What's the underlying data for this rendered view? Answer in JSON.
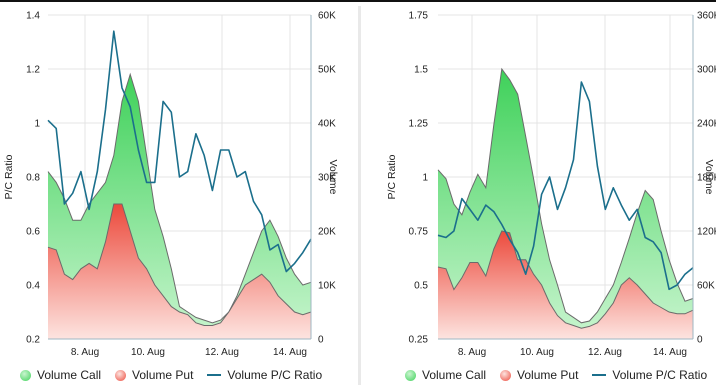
{
  "colors": {
    "call_top": "#3fd15a",
    "call_bottom": "#c9f5cf",
    "put_top": "#ec4a3c",
    "put_bottom": "#fde4e0",
    "ratio_line": "#1b6f8c",
    "grid": "#e4e4e4",
    "axis": "#9fb7c3"
  },
  "legend": {
    "call": "Volume Call",
    "put": "Volume Put",
    "ratio": "Volume P/C Ratio"
  },
  "chart_data": [
    {
      "type": "area",
      "ylabel": "P/C Ratio",
      "y2label": "Volume",
      "ylim": [
        0.2,
        1.4
      ],
      "y2lim": [
        0,
        60000
      ],
      "yticks": [
        "1.4",
        "1.2",
        "1",
        "0.8",
        "0.6",
        "0.4",
        "0.2"
      ],
      "y2ticks": [
        "60K",
        "50K",
        "40K",
        "30K",
        "20K",
        "10K",
        "0"
      ],
      "xticks": [
        "8. Aug",
        "10. Aug",
        "12. Aug",
        "14. Aug"
      ],
      "x": [
        0,
        0.25,
        0.5,
        0.75,
        1,
        1.25,
        1.5,
        1.75,
        2,
        2.25,
        2.5,
        2.75,
        3,
        3.25,
        3.5,
        3.75,
        4,
        4.25,
        4.5,
        4.75,
        5,
        5.25,
        5.5,
        5.75,
        6,
        6.25,
        6.5,
        6.75,
        7,
        7.25,
        7.5,
        7.75,
        8
      ],
      "x_unit": "days from 7. Aug",
      "series": [
        {
          "name": "Volume Call",
          "values": [
            31000,
            29000,
            26000,
            22000,
            22000,
            25000,
            27000,
            29000,
            34000,
            44000,
            49000,
            44000,
            34000,
            24000,
            19000,
            13000,
            6000,
            5000,
            4000,
            3500,
            3000,
            3500,
            5000,
            8000,
            12000,
            16000,
            20000,
            22000,
            19000,
            15000,
            12000,
            10000,
            10500
          ]
        },
        {
          "name": "Volume Put",
          "values": [
            17000,
            16500,
            12000,
            11000,
            13000,
            14000,
            13000,
            18000,
            25000,
            25000,
            20000,
            15000,
            13000,
            10000,
            8000,
            6000,
            5000,
            4500,
            3000,
            2500,
            2500,
            3000,
            5000,
            7500,
            10000,
            11000,
            12000,
            10500,
            8000,
            6500,
            5000,
            4500,
            5000
          ]
        },
        {
          "name": "Volume P/C Ratio",
          "values": [
            1.01,
            0.98,
            0.7,
            0.74,
            0.82,
            0.68,
            0.82,
            1.05,
            1.34,
            1.13,
            1.06,
            0.9,
            0.78,
            0.78,
            1.08,
            1.04,
            0.8,
            0.82,
            0.96,
            0.88,
            0.75,
            0.9,
            0.9,
            0.8,
            0.82,
            0.71,
            0.66,
            0.53,
            0.55,
            0.45,
            0.48,
            0.52,
            0.57
          ]
        }
      ]
    },
    {
      "type": "area",
      "ylabel": "P/C Ratio",
      "y2label": "Volume",
      "ylim": [
        0.25,
        1.75
      ],
      "y2lim": [
        0,
        360000
      ],
      "yticks": [
        "1.75",
        "1.5",
        "1.25",
        "1",
        "0.75",
        "0.5",
        "0.25"
      ],
      "y2ticks": [
        "360K",
        "300K",
        "240K",
        "180K",
        "120K",
        "60K",
        "0"
      ],
      "xticks": [
        "8. Aug",
        "10. Aug",
        "12. Aug",
        "14. Aug"
      ],
      "x": [
        0,
        0.25,
        0.5,
        0.75,
        1,
        1.25,
        1.5,
        1.75,
        2,
        2.25,
        2.5,
        2.75,
        3,
        3.25,
        3.5,
        3.75,
        4,
        4.25,
        4.5,
        4.75,
        5,
        5.25,
        5.5,
        5.75,
        6,
        6.25,
        6.5,
        6.75,
        7,
        7.25,
        7.5,
        7.75,
        8
      ],
      "x_unit": "days from 7. Aug",
      "series": [
        {
          "name": "Volume Call",
          "values": [
            188000,
            178000,
            150000,
            138000,
            163000,
            183000,
            168000,
            238000,
            300000,
            288000,
            272000,
            225000,
            178000,
            128000,
            88000,
            60000,
            30000,
            24000,
            18000,
            20000,
            30000,
            45000,
            60000,
            85000,
            112000,
            140000,
            165000,
            155000,
            120000,
            88000,
            62000,
            42000,
            45000
          ]
        },
        {
          "name": "Volume Put",
          "values": [
            80000,
            78000,
            55000,
            68000,
            85000,
            85000,
            70000,
            100000,
            120000,
            118000,
            88000,
            88000,
            72000,
            60000,
            40000,
            26000,
            18000,
            15000,
            12000,
            14000,
            18000,
            28000,
            40000,
            60000,
            68000,
            60000,
            50000,
            40000,
            35000,
            30000,
            28000,
            28000,
            32000
          ]
        },
        {
          "name": "Volume P/C Ratio",
          "values": [
            0.73,
            0.72,
            0.75,
            0.9,
            0.85,
            0.8,
            0.87,
            0.84,
            0.78,
            0.71,
            0.65,
            0.55,
            0.68,
            0.92,
            1.0,
            0.85,
            0.95,
            1.08,
            1.44,
            1.35,
            1.05,
            0.85,
            0.95,
            0.87,
            0.8,
            0.85,
            0.72,
            0.7,
            0.65,
            0.48,
            0.5,
            0.55,
            0.58
          ]
        }
      ]
    }
  ]
}
